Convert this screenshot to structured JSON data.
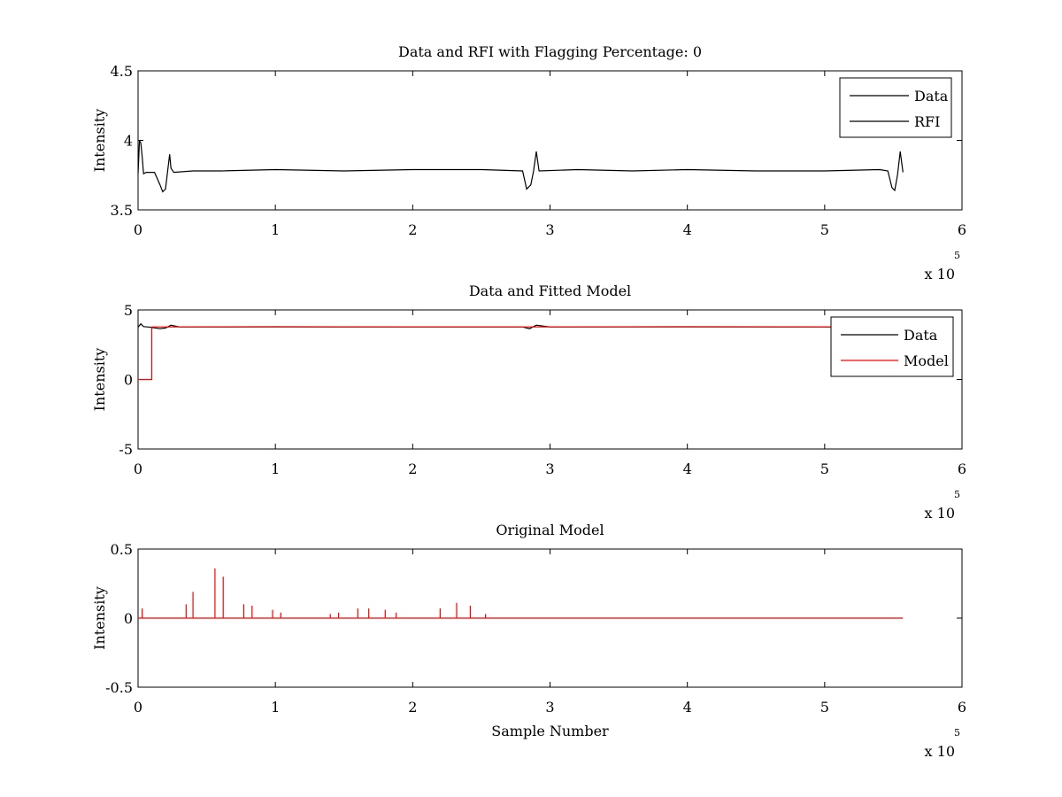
{
  "chart_data": [
    {
      "type": "line",
      "title": "Data and RFI with Flagging Percentage: 0",
      "xlabel": "",
      "ylabel": "Intensity",
      "xlim": [
        0,
        6
      ],
      "ylim": [
        3.5,
        4.5
      ],
      "x_multiplier_label": "x 10",
      "x_multiplier_exponent": "5",
      "xticks": [
        "0",
        "1",
        "2",
        "3",
        "4",
        "5",
        "6"
      ],
      "yticks": [
        "3.5",
        "4",
        "4.5"
      ],
      "legend": {
        "placement": "top-right",
        "entries": [
          "Data",
          "RFI"
        ]
      },
      "grid": false,
      "series": [
        {
          "name": "Data",
          "color": "#000000",
          "x": [
            0.0,
            0.01,
            0.02,
            0.03,
            0.04,
            0.06,
            0.08,
            0.12,
            0.16,
            0.18,
            0.2,
            0.23,
            0.24,
            0.26,
            0.4,
            0.6,
            1.0,
            1.5,
            2.0,
            2.5,
            2.8,
            2.83,
            2.86,
            2.88,
            2.9,
            2.92,
            3.2,
            3.6,
            4.0,
            4.5,
            5.0,
            5.4,
            5.46,
            5.49,
            5.51,
            5.53,
            5.55,
            5.57
          ],
          "y": [
            3.76,
            4.0,
            3.98,
            3.88,
            3.76,
            3.77,
            3.77,
            3.77,
            3.68,
            3.63,
            3.65,
            3.9,
            3.8,
            3.77,
            3.78,
            3.78,
            3.79,
            3.78,
            3.79,
            3.79,
            3.78,
            3.65,
            3.68,
            3.78,
            3.92,
            3.78,
            3.79,
            3.78,
            3.79,
            3.78,
            3.78,
            3.79,
            3.78,
            3.66,
            3.64,
            3.75,
            3.92,
            3.77
          ]
        }
      ]
    },
    {
      "type": "line",
      "title": "Data and Fitted Model",
      "xlabel": "",
      "ylabel": "Intensity",
      "xlim": [
        0,
        6
      ],
      "ylim": [
        -5,
        5
      ],
      "x_multiplier_label": "x 10",
      "x_multiplier_exponent": "5",
      "xticks": [
        "0",
        "1",
        "2",
        "3",
        "4",
        "5",
        "6"
      ],
      "yticks": [
        "-5",
        "0",
        "5"
      ],
      "legend": {
        "placement": "top-right",
        "entries": [
          "Data",
          "Model"
        ]
      },
      "grid": false,
      "series": [
        {
          "name": "Data",
          "color": "#000000",
          "x": [
            0.0,
            0.02,
            0.04,
            0.08,
            0.16,
            0.2,
            0.24,
            0.3,
            1.0,
            2.0,
            2.8,
            2.85,
            2.9,
            3.0,
            4.0,
            5.0,
            5.5,
            5.57
          ],
          "y": [
            3.76,
            4.0,
            3.8,
            3.77,
            3.65,
            3.7,
            3.9,
            3.78,
            3.79,
            3.78,
            3.78,
            3.65,
            3.9,
            3.78,
            3.79,
            3.78,
            3.7,
            3.77
          ]
        },
        {
          "name": "Model",
          "color": "#ff0000",
          "x": [
            0.0,
            0.1,
            0.1,
            1.0,
            2.0,
            3.0,
            4.0,
            5.0,
            5.57
          ],
          "y": [
            0.0,
            0.0,
            3.78,
            3.78,
            3.78,
            3.78,
            3.78,
            3.78,
            3.78
          ]
        }
      ]
    },
    {
      "type": "line",
      "title": "Original Model",
      "xlabel": "Sample Number",
      "ylabel": "Intensity",
      "xlim": [
        0,
        6
      ],
      "ylim": [
        -0.5,
        0.5
      ],
      "x_multiplier_label": "x 10",
      "x_multiplier_exponent": "5",
      "xticks": [
        "0",
        "1",
        "2",
        "3",
        "4",
        "5",
        "6"
      ],
      "yticks": [
        "-0.5",
        "0",
        "0.5"
      ],
      "grid": false,
      "series": [
        {
          "color": "#ff0000",
          "x": [
            0.0,
            5.57
          ],
          "y": [
            0.0,
            0.0
          ],
          "spikes": [
            {
              "x": 0.03,
              "y": 0.07
            },
            {
              "x": 0.35,
              "y": 0.1
            },
            {
              "x": 0.4,
              "y": 0.19
            },
            {
              "x": 0.56,
              "y": 0.36
            },
            {
              "x": 0.62,
              "y": 0.3
            },
            {
              "x": 0.77,
              "y": 0.1
            },
            {
              "x": 0.83,
              "y": 0.09
            },
            {
              "x": 0.98,
              "y": 0.06
            },
            {
              "x": 1.04,
              "y": 0.04
            },
            {
              "x": 1.4,
              "y": 0.03
            },
            {
              "x": 1.46,
              "y": 0.04
            },
            {
              "x": 1.6,
              "y": 0.07
            },
            {
              "x": 1.68,
              "y": 0.07
            },
            {
              "x": 1.8,
              "y": 0.06
            },
            {
              "x": 1.88,
              "y": 0.04
            },
            {
              "x": 2.2,
              "y": 0.07
            },
            {
              "x": 2.32,
              "y": 0.11
            },
            {
              "x": 2.42,
              "y": 0.09
            },
            {
              "x": 2.53,
              "y": 0.03
            }
          ]
        }
      ]
    }
  ]
}
